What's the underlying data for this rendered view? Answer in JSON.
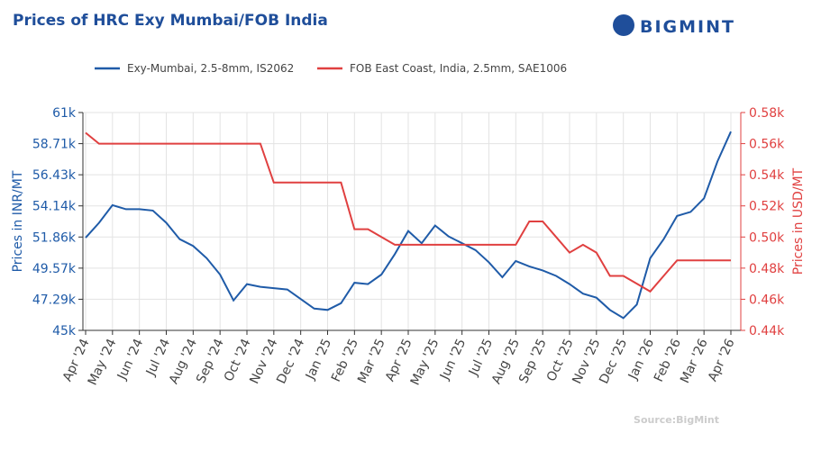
{
  "chart_data": {
    "type": "line",
    "title": "Prices of HRC Exy Mumbai/FOB India",
    "brand": "BIGMINT",
    "source": "Source:BigMint",
    "ylabel": "Prices in INR/MT",
    "y2label": "Prices in USD/MT",
    "grid": true,
    "legend": "top",
    "categories": [
      "Apr '24",
      null,
      "May '24",
      null,
      "Jun '24",
      null,
      "Jul '24",
      null,
      "Aug '24",
      null,
      "Sep '24",
      null,
      "Oct '24",
      null,
      "Nov '24",
      null,
      "Dec '24",
      null,
      "Jan '25",
      null,
      "Feb '25",
      null,
      "Mar '25",
      null,
      "Apr '25",
      null,
      "May '25",
      null,
      "Jun '25",
      null,
      "Jul '25",
      null,
      "Aug '25",
      null,
      "Sep '25",
      null,
      "Oct '25",
      null,
      "Nov '25",
      null,
      "Dec '25",
      null,
      "Jan '26",
      null,
      "Feb '26",
      null,
      "Mar '26",
      null,
      "Apr '26"
    ],
    "ylim": [
      45000,
      61000
    ],
    "yticks": [
      {
        "value": 45000,
        "label": "45k"
      },
      {
        "value": 47286,
        "label": "47.29k"
      },
      {
        "value": 49571,
        "label": "49.57k"
      },
      {
        "value": 51857,
        "label": "51.86k"
      },
      {
        "value": 54143,
        "label": "54.14k"
      },
      {
        "value": 56429,
        "label": "56.43k"
      },
      {
        "value": 58714,
        "label": "58.71k"
      },
      {
        "value": 61000,
        "label": "61k"
      }
    ],
    "y2lim": [
      440,
      580
    ],
    "y2ticks": [
      {
        "value": 440,
        "label": "0.44k"
      },
      {
        "value": 460,
        "label": "0.46k"
      },
      {
        "value": 480,
        "label": "0.48k"
      },
      {
        "value": 500,
        "label": "0.50k"
      },
      {
        "value": 520,
        "label": "0.52k"
      },
      {
        "value": 540,
        "label": "0.54k"
      },
      {
        "value": 560,
        "label": "0.56k"
      },
      {
        "value": 580,
        "label": "0.58k"
      }
    ],
    "series": [
      {
        "name": "Exy-Mumbai, 2.5-8mm, IS2062",
        "color": "#1f5ba8",
        "axis": "y",
        "values": [
          51800,
          52900,
          54200,
          53900,
          53900,
          53800,
          52900,
          51700,
          51200,
          50300,
          49100,
          47200,
          48400,
          48200,
          48100,
          48000,
          47300,
          46600,
          46500,
          47000,
          48500,
          48400,
          49100,
          50600,
          52300,
          51400,
          52700,
          51900,
          51400,
          50900,
          50000,
          48900,
          50100,
          49700,
          49400,
          49000,
          48400,
          47700,
          47400,
          46500,
          45900,
          46900,
          50300,
          51700,
          53400,
          53700,
          54700,
          57400,
          59600
        ]
      },
      {
        "name": "FOB East Coast, India, 2.5mm, SAE1006",
        "color": "#e04040",
        "axis": "y2",
        "values": [
          567,
          560,
          560,
          560,
          560,
          560,
          560,
          560,
          560,
          560,
          560,
          560,
          560,
          560,
          535,
          535,
          535,
          535,
          535,
          535,
          505,
          505,
          500,
          495,
          495,
          495,
          495,
          495,
          495,
          495,
          495,
          495,
          495,
          510,
          510,
          500,
          490,
          495,
          490,
          475,
          475,
          470,
          465,
          475,
          485,
          485,
          485,
          485,
          485
        ]
      }
    ]
  }
}
